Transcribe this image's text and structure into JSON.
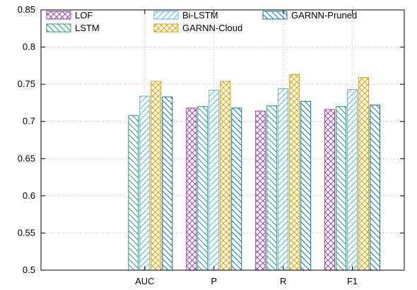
{
  "chart_data": {
    "type": "bar",
    "title": "",
    "xlabel": "",
    "ylabel": "",
    "categories": [
      "AUC",
      "P",
      "R",
      "F1"
    ],
    "ylim": [
      0.5,
      0.85
    ],
    "yticks": [
      "0.5",
      "0.55",
      "0.6",
      "0.65",
      "0.7",
      "0.75",
      "0.8",
      "0.85"
    ],
    "grid": true,
    "legend_position": "top-left",
    "series": [
      {
        "name": "LOF",
        "color": "#9B3FB5",
        "pattern": "crosshatch",
        "values": [
          null,
          0.718,
          0.714,
          0.716
        ]
      },
      {
        "name": "LSTM",
        "color": "#1F9E78",
        "pattern": "diag-backslash",
        "values": [
          0.708,
          0.72,
          0.721,
          0.72
        ]
      },
      {
        "name": "Bi-LSTM",
        "color": "#56B4E9",
        "pattern": "diag-slash",
        "values": [
          0.734,
          0.742,
          0.744,
          0.743
        ]
      },
      {
        "name": "GARNN-Cloud",
        "color": "#E69F00",
        "pattern": "crosshatch",
        "values": [
          0.754,
          0.754,
          0.763,
          0.759
        ]
      },
      {
        "name": "GARNN-Pruned",
        "color": "#0072B2",
        "pattern": "diag-backslash",
        "values": [
          0.733,
          0.718,
          0.727,
          0.722
        ]
      }
    ]
  }
}
